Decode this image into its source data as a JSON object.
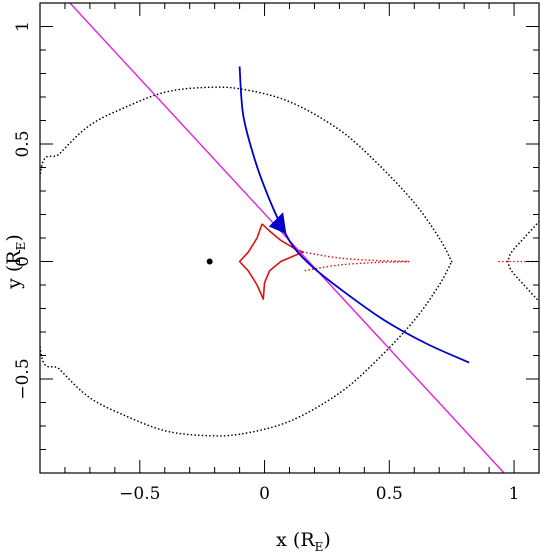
{
  "chart_data": {
    "type": "line",
    "title": "",
    "xlabel": {
      "main": "x (R",
      "sub": "E",
      "close": ")"
    },
    "ylabel": {
      "main": "y (R",
      "sub": "E",
      "close": ")"
    },
    "xlim": [
      -0.9,
      1.1
    ],
    "ylim": [
      -0.9,
      1.1
    ],
    "xticks": [
      -0.5,
      0,
      0.5,
      1
    ],
    "xtick_labels": [
      "−0.5",
      "0",
      "0.5",
      "1"
    ],
    "yticks": [
      -0.5,
      0,
      0.5,
      1
    ],
    "ytick_labels": [
      "−0.5",
      "0",
      "0.5",
      "1"
    ],
    "grid": false,
    "colors": {
      "source_trajectory": "#0000cc",
      "lens_axis": "#e020e0",
      "caustic": "#dd1111",
      "critical_curve": "#000000",
      "lens_star": "#000000"
    },
    "lens_star": {
      "x": -0.22,
      "y": 0.0
    },
    "lens_axis_line": {
      "x1": -0.78,
      "y1": 1.1,
      "x2": 0.96,
      "y2": -0.9
    },
    "source_trajectory": [
      {
        "x": -0.1,
        "y": 0.83
      },
      {
        "x": -0.085,
        "y": 0.62
      },
      {
        "x": -0.035,
        "y": 0.42
      },
      {
        "x": 0.025,
        "y": 0.25
      },
      {
        "x": 0.078,
        "y": 0.13
      },
      {
        "x": 0.125,
        "y": 0.05
      },
      {
        "x": 0.2,
        "y": -0.03
      },
      {
        "x": 0.32,
        "y": -0.13
      },
      {
        "x": 0.48,
        "y": -0.25
      },
      {
        "x": 0.65,
        "y": -0.35
      },
      {
        "x": 0.82,
        "y": -0.43
      }
    ],
    "arrow_head": {
      "x": 0.085,
      "y": 0.12
    },
    "caustic_curve": [
      {
        "x": -0.01,
        "y": 0.16
      },
      {
        "x": 0.02,
        "y": 0.13
      },
      {
        "x": 0.065,
        "y": 0.09
      },
      {
        "x": 0.12,
        "y": 0.055
      },
      {
        "x": 0.155,
        "y": 0.04
      },
      {
        "x": 0.12,
        "y": 0.025
      },
      {
        "x": 0.065,
        "y": 0.0
      },
      {
        "x": 0.02,
        "y": -0.04
      },
      {
        "x": 0.0,
        "y": -0.09
      },
      {
        "x": -0.005,
        "y": -0.16
      },
      {
        "x": -0.03,
        "y": -0.1
      },
      {
        "x": -0.065,
        "y": -0.04
      },
      {
        "x": -0.1,
        "y": 0.0
      },
      {
        "x": -0.065,
        "y": 0.04
      },
      {
        "x": -0.03,
        "y": 0.1
      },
      {
        "x": -0.01,
        "y": 0.16
      }
    ],
    "caustic_dotted_tail": [
      {
        "x": 0.155,
        "y": 0.04
      },
      {
        "x": 0.3,
        "y": 0.015
      },
      {
        "x": 0.45,
        "y": 0.004
      },
      {
        "x": 0.58,
        "y": 0.0
      },
      {
        "x": 0.45,
        "y": -0.004
      },
      {
        "x": 0.3,
        "y": -0.015
      },
      {
        "x": 0.155,
        "y": -0.04
      }
    ],
    "caustic_dotted_right": [
      {
        "x": 0.94,
        "y": 0.0
      },
      {
        "x": 1.1,
        "y": 0.0
      }
    ],
    "critical_curve_left": [
      {
        "x": 0.75,
        "y": 0.0
      },
      {
        "x": 0.7,
        "y": 0.1
      },
      {
        "x": 0.6,
        "y": 0.25
      },
      {
        "x": 0.45,
        "y": 0.42
      },
      {
        "x": 0.3,
        "y": 0.56
      },
      {
        "x": 0.1,
        "y": 0.68
      },
      {
        "x": -0.1,
        "y": 0.735
      },
      {
        "x": -0.25,
        "y": 0.74
      },
      {
        "x": -0.4,
        "y": 0.72
      },
      {
        "x": -0.55,
        "y": 0.66
      },
      {
        "x": -0.7,
        "y": 0.58
      },
      {
        "x": -0.82,
        "y": 0.46
      },
      {
        "x": -0.9,
        "y": 0.36
      },
      {
        "x": -0.9,
        "y": -0.36
      },
      {
        "x": -0.82,
        "y": -0.46
      },
      {
        "x": -0.7,
        "y": -0.58
      },
      {
        "x": -0.55,
        "y": -0.66
      },
      {
        "x": -0.4,
        "y": -0.72
      },
      {
        "x": -0.25,
        "y": -0.74
      },
      {
        "x": -0.1,
        "y": -0.735
      },
      {
        "x": 0.1,
        "y": -0.68
      },
      {
        "x": 0.3,
        "y": -0.56
      },
      {
        "x": 0.45,
        "y": -0.42
      },
      {
        "x": 0.6,
        "y": -0.25
      },
      {
        "x": 0.7,
        "y": -0.1
      },
      {
        "x": 0.75,
        "y": 0.0
      }
    ],
    "critical_curve_right_upper": [
      {
        "x": 1.1,
        "y": 0.17
      },
      {
        "x": 1.04,
        "y": 0.1
      },
      {
        "x": 0.99,
        "y": 0.04
      },
      {
        "x": 0.975,
        "y": 0.0
      }
    ],
    "critical_curve_right_lower": [
      {
        "x": 0.975,
        "y": 0.0
      },
      {
        "x": 0.99,
        "y": -0.04
      },
      {
        "x": 1.04,
        "y": -0.1
      },
      {
        "x": 1.1,
        "y": -0.17
      }
    ]
  }
}
